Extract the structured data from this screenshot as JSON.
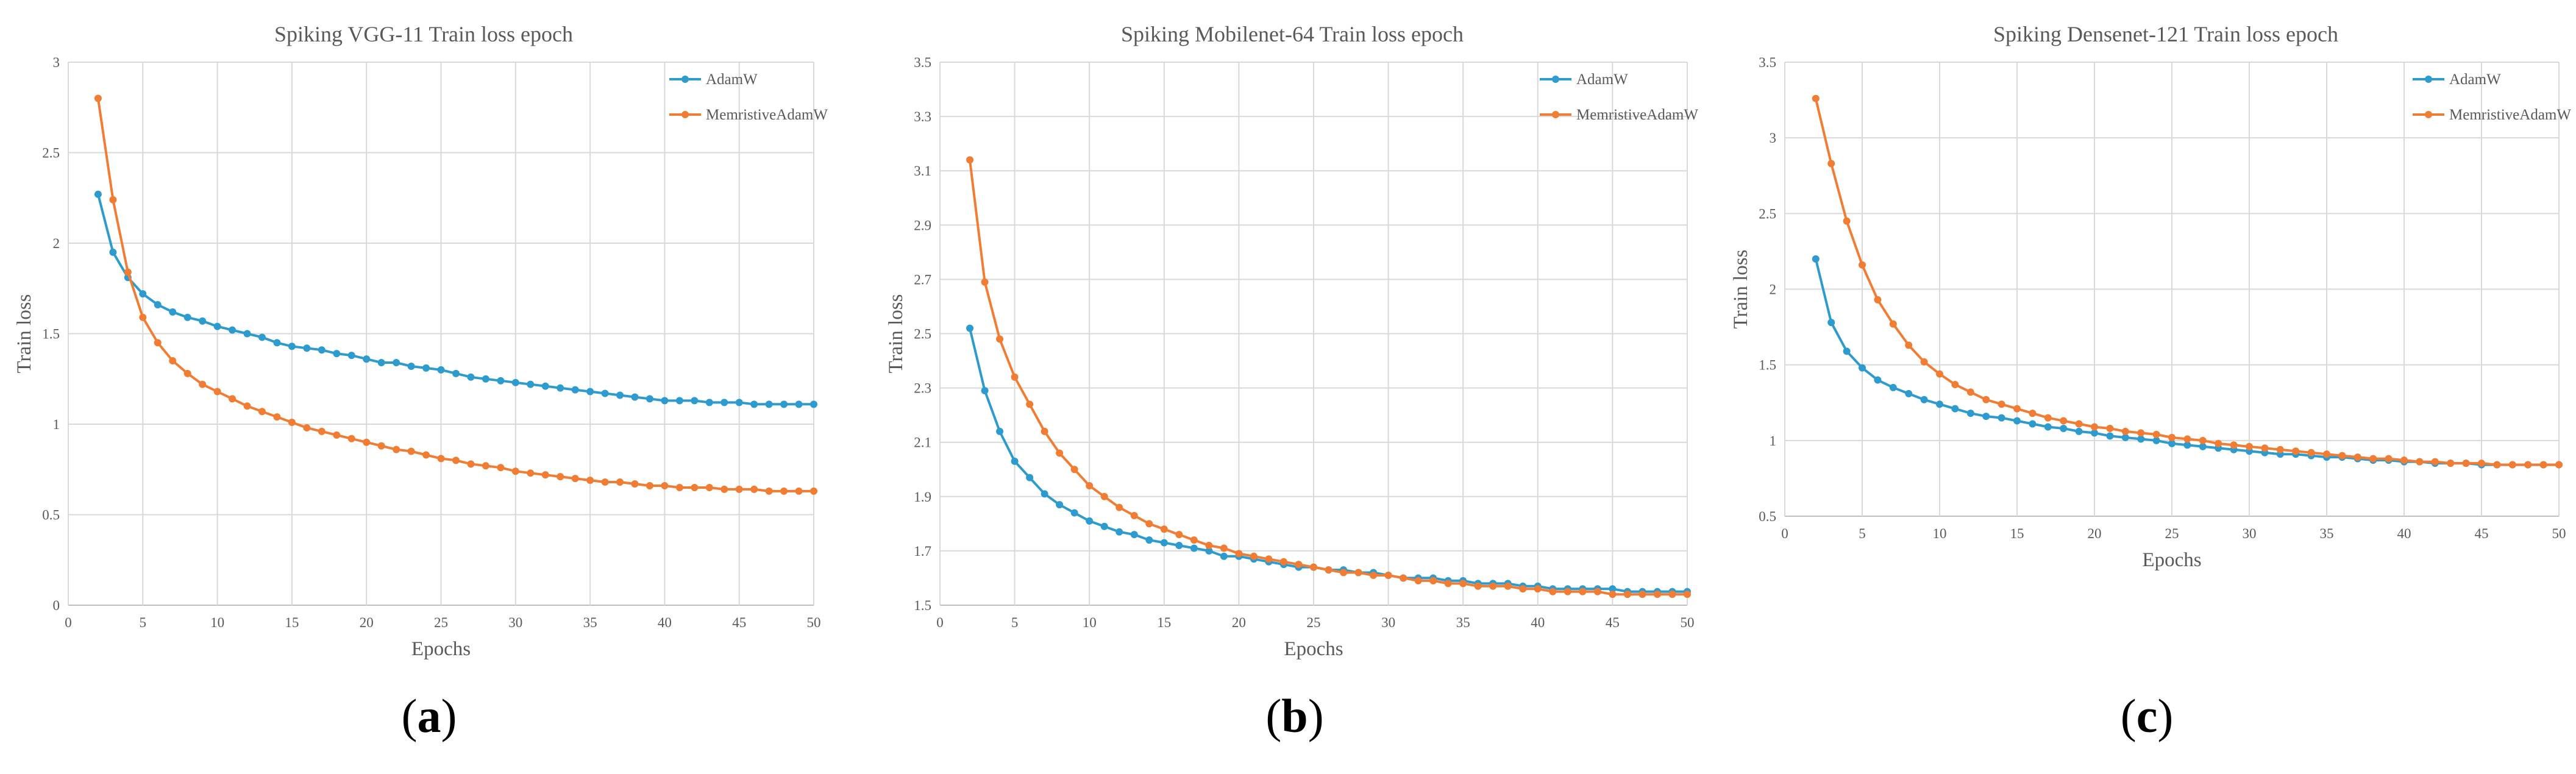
{
  "colors": {
    "adamw": "#2e9bcf",
    "memristive": "#f07d33"
  },
  "chart_data": [
    {
      "type": "line",
      "title": "Spiking VGG-11 Train loss epoch",
      "xlabel": "Epochs",
      "ylabel": "Train loss",
      "xlim": [
        0,
        50
      ],
      "ylim": [
        0,
        3
      ],
      "xticks": [
        0,
        5,
        10,
        15,
        20,
        25,
        30,
        35,
        40,
        45,
        50
      ],
      "yticks": [
        0,
        0.5,
        1,
        1.5,
        2,
        2.5,
        3
      ],
      "ytick_labels": [
        "0",
        "0.5",
        "1",
        "1.5",
        "2",
        "2.5",
        "3"
      ],
      "caption_letter": "a",
      "x": [
        2,
        3,
        4,
        5,
        6,
        7,
        8,
        9,
        10,
        11,
        12,
        13,
        14,
        15,
        16,
        17,
        18,
        19,
        20,
        21,
        22,
        23,
        24,
        25,
        26,
        27,
        28,
        29,
        30,
        31,
        32,
        33,
        34,
        35,
        36,
        37,
        38,
        39,
        40,
        41,
        42,
        43,
        44,
        45,
        46,
        47,
        48,
        49,
        50
      ],
      "series": [
        {
          "name": "AdamW",
          "color": "#2e9bcf",
          "values": [
            2.27,
            1.95,
            1.81,
            1.72,
            1.66,
            1.62,
            1.59,
            1.57,
            1.54,
            1.52,
            1.5,
            1.48,
            1.45,
            1.43,
            1.42,
            1.41,
            1.39,
            1.38,
            1.36,
            1.34,
            1.34,
            1.32,
            1.31,
            1.3,
            1.28,
            1.26,
            1.25,
            1.24,
            1.23,
            1.22,
            1.21,
            1.2,
            1.19,
            1.18,
            1.17,
            1.16,
            1.15,
            1.14,
            1.13,
            1.13,
            1.13,
            1.12,
            1.12,
            1.12,
            1.11,
            1.11,
            1.11,
            1.11,
            1.11
          ]
        },
        {
          "name": "MemristiveAdamW",
          "color": "#f07d33",
          "values": [
            2.8,
            2.24,
            1.84,
            1.59,
            1.45,
            1.35,
            1.28,
            1.22,
            1.18,
            1.14,
            1.1,
            1.07,
            1.04,
            1.01,
            0.98,
            0.96,
            0.94,
            0.92,
            0.9,
            0.88,
            0.86,
            0.85,
            0.83,
            0.81,
            0.8,
            0.78,
            0.77,
            0.76,
            0.74,
            0.73,
            0.72,
            0.71,
            0.7,
            0.69,
            0.68,
            0.68,
            0.67,
            0.66,
            0.66,
            0.65,
            0.65,
            0.65,
            0.64,
            0.64,
            0.64,
            0.63,
            0.63,
            0.63,
            0.63
          ]
        }
      ]
    },
    {
      "type": "line",
      "title": "Spiking Mobilenet-64 Train loss epoch",
      "xlabel": "Epochs",
      "ylabel": "Train loss",
      "xlim": [
        0,
        50
      ],
      "ylim": [
        1.5,
        3.5
      ],
      "xticks": [
        0,
        5,
        10,
        15,
        20,
        25,
        30,
        35,
        40,
        45,
        50
      ],
      "yticks": [
        1.5,
        1.7,
        1.9,
        2.1,
        2.3,
        2.5,
        2.7,
        2.9,
        3.1,
        3.3,
        3.5
      ],
      "ytick_labels": [
        "1.5",
        "1.7",
        "1.9",
        "2.1",
        "2.3",
        "2.5",
        "2.7",
        "2.9",
        "3.1",
        "3.3",
        "3.5"
      ],
      "caption_letter": "b",
      "x": [
        2,
        3,
        4,
        5,
        6,
        7,
        8,
        9,
        10,
        11,
        12,
        13,
        14,
        15,
        16,
        17,
        18,
        19,
        20,
        21,
        22,
        23,
        24,
        25,
        26,
        27,
        28,
        29,
        30,
        31,
        32,
        33,
        34,
        35,
        36,
        37,
        38,
        39,
        40,
        41,
        42,
        43,
        44,
        45,
        46,
        47,
        48,
        49,
        50
      ],
      "series": [
        {
          "name": "AdamW",
          "color": "#2e9bcf",
          "values": [
            2.52,
            2.29,
            2.14,
            2.03,
            1.97,
            1.91,
            1.87,
            1.84,
            1.81,
            1.79,
            1.77,
            1.76,
            1.74,
            1.73,
            1.72,
            1.71,
            1.7,
            1.68,
            1.68,
            1.67,
            1.66,
            1.65,
            1.64,
            1.64,
            1.63,
            1.63,
            1.62,
            1.62,
            1.61,
            1.6,
            1.6,
            1.6,
            1.59,
            1.59,
            1.58,
            1.58,
            1.58,
            1.57,
            1.57,
            1.56,
            1.56,
            1.56,
            1.56,
            1.56,
            1.55,
            1.55,
            1.55,
            1.55,
            1.55
          ]
        },
        {
          "name": "MemristiveAdamW",
          "color": "#f07d33",
          "values": [
            3.14,
            2.69,
            2.48,
            2.34,
            2.24,
            2.14,
            2.06,
            2.0,
            1.94,
            1.9,
            1.86,
            1.83,
            1.8,
            1.78,
            1.76,
            1.74,
            1.72,
            1.71,
            1.69,
            1.68,
            1.67,
            1.66,
            1.65,
            1.64,
            1.63,
            1.62,
            1.62,
            1.61,
            1.61,
            1.6,
            1.59,
            1.59,
            1.58,
            1.58,
            1.57,
            1.57,
            1.57,
            1.56,
            1.56,
            1.55,
            1.55,
            1.55,
            1.55,
            1.54,
            1.54,
            1.54,
            1.54,
            1.54,
            1.54
          ]
        }
      ]
    },
    {
      "type": "line",
      "title": "Spiking Densenet-121 Train loss epoch",
      "xlabel": "Epochs",
      "ylabel": "Train loss",
      "xlim": [
        0,
        50
      ],
      "ylim": [
        0.5,
        3.5
      ],
      "xticks": [
        0,
        5,
        10,
        15,
        20,
        25,
        30,
        35,
        40,
        45,
        50
      ],
      "yticks": [
        0.5,
        1,
        1.5,
        2,
        2.5,
        3,
        3.5
      ],
      "ytick_labels": [
        "0.5",
        "1",
        "1.5",
        "2",
        "2.5",
        "3",
        "3.5"
      ],
      "caption_letter": "c",
      "x": [
        2,
        3,
        4,
        5,
        6,
        7,
        8,
        9,
        10,
        11,
        12,
        13,
        14,
        15,
        16,
        17,
        18,
        19,
        20,
        21,
        22,
        23,
        24,
        25,
        26,
        27,
        28,
        29,
        30,
        31,
        32,
        33,
        34,
        35,
        36,
        37,
        38,
        39,
        40,
        41,
        42,
        43,
        44,
        45,
        46,
        47,
        48,
        49,
        50
      ],
      "series": [
        {
          "name": "AdamW",
          "color": "#2e9bcf",
          "values": [
            2.2,
            1.78,
            1.59,
            1.48,
            1.4,
            1.35,
            1.31,
            1.27,
            1.24,
            1.21,
            1.18,
            1.16,
            1.15,
            1.13,
            1.11,
            1.09,
            1.08,
            1.06,
            1.05,
            1.03,
            1.02,
            1.01,
            1.0,
            0.98,
            0.97,
            0.96,
            0.95,
            0.94,
            0.93,
            0.92,
            0.91,
            0.91,
            0.9,
            0.89,
            0.89,
            0.88,
            0.87,
            0.87,
            0.86,
            0.86,
            0.85,
            0.85,
            0.85,
            0.84,
            0.84,
            0.84,
            0.84,
            0.84,
            0.84
          ]
        },
        {
          "name": "MemristiveAdamW",
          "color": "#f07d33",
          "values": [
            3.26,
            2.83,
            2.45,
            2.16,
            1.93,
            1.77,
            1.63,
            1.52,
            1.44,
            1.37,
            1.32,
            1.27,
            1.24,
            1.21,
            1.18,
            1.15,
            1.13,
            1.11,
            1.09,
            1.08,
            1.06,
            1.05,
            1.04,
            1.02,
            1.01,
            1.0,
            0.98,
            0.97,
            0.96,
            0.95,
            0.94,
            0.93,
            0.92,
            0.91,
            0.9,
            0.89,
            0.88,
            0.88,
            0.87,
            0.86,
            0.86,
            0.85,
            0.85,
            0.85,
            0.84,
            0.84,
            0.84,
            0.84,
            0.84
          ]
        }
      ]
    }
  ]
}
